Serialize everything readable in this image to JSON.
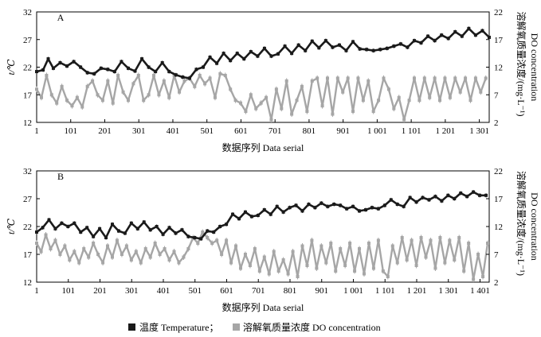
{
  "chart_data": [
    {
      "type": "line",
      "panel_label": "A",
      "xlabel": "数据序列 Data serial",
      "ylabel_left": "t/℃",
      "ylabel_right": "溶解氧质量浓度/(mg·L⁻¹)",
      "ylabel_right_en": "DO concentration",
      "xlim": [
        1,
        1330
      ],
      "ylim_left": [
        12,
        32
      ],
      "ylim_right": [
        2,
        22
      ],
      "x_ticks": [
        1,
        101,
        201,
        301,
        401,
        501,
        601,
        701,
        801,
        901,
        1001,
        1101,
        1201,
        1301
      ],
      "x_tick_labels": [
        "1",
        "101",
        "201",
        "301",
        "401",
        "501",
        "601",
        "701",
        "801",
        "901",
        "1 001",
        "1 101",
        "1 201",
        "1 301"
      ],
      "y_ticks_left": [
        12,
        17,
        22,
        27,
        32
      ],
      "y_ticks_right": [
        2,
        7,
        12,
        17,
        22
      ],
      "series": [
        {
          "name": "温度 Temperature",
          "axis": "left",
          "color": "#1a1a1a",
          "x": [
            1,
            20,
            35,
            50,
            70,
            90,
            110,
            130,
            150,
            170,
            190,
            210,
            230,
            250,
            270,
            290,
            310,
            330,
            350,
            370,
            390,
            410,
            430,
            450,
            470,
            490,
            510,
            530,
            550,
            570,
            590,
            610,
            630,
            650,
            670,
            690,
            710,
            730,
            750,
            770,
            790,
            810,
            830,
            850,
            870,
            890,
            910,
            930,
            950,
            970,
            990,
            1010,
            1030,
            1050,
            1070,
            1090,
            1110,
            1130,
            1150,
            1170,
            1190,
            1210,
            1230,
            1250,
            1270,
            1290,
            1310,
            1330
          ],
          "values": [
            21.2,
            21.5,
            23.5,
            21.8,
            22.8,
            22.2,
            23.0,
            22.0,
            21.0,
            20.8,
            21.8,
            21.6,
            21.2,
            23.0,
            21.8,
            21.3,
            23.5,
            22.0,
            21.2,
            22.8,
            21.2,
            20.6,
            20.2,
            20.0,
            21.6,
            22.0,
            23.8,
            22.7,
            24.5,
            23.2,
            24.5,
            23.5,
            24.8,
            24.0,
            25.4,
            24.0,
            24.4,
            25.8,
            24.5,
            26.0,
            25.0,
            26.7,
            25.5,
            26.8,
            25.6,
            26.0,
            25.0,
            26.6,
            25.3,
            25.2,
            25.0,
            25.2,
            25.4,
            25.8,
            26.2,
            25.6,
            26.8,
            26.4,
            27.6,
            26.8,
            27.8,
            27.2,
            28.4,
            27.6,
            29.0,
            27.8,
            28.6,
            27.4
          ]
        },
        {
          "name": "溶解氧质量浓度 DO concentration",
          "axis": "right",
          "color": "#a6a6a6",
          "x": [
            1,
            15,
            30,
            45,
            60,
            75,
            90,
            105,
            120,
            135,
            150,
            165,
            180,
            195,
            210,
            225,
            240,
            255,
            270,
            285,
            300,
            315,
            330,
            345,
            360,
            375,
            390,
            405,
            420,
            435,
            450,
            465,
            480,
            495,
            510,
            525,
            540,
            555,
            570,
            585,
            600,
            615,
            630,
            645,
            660,
            675,
            690,
            705,
            720,
            735,
            750,
            765,
            780,
            795,
            810,
            825,
            840,
            855,
            870,
            885,
            900,
            915,
            930,
            945,
            960,
            975,
            990,
            1005,
            1020,
            1035,
            1050,
            1065,
            1080,
            1095,
            1110,
            1125,
            1140,
            1155,
            1170,
            1185,
            1200,
            1215,
            1230,
            1245,
            1260,
            1275,
            1290,
            1305,
            1320
          ],
          "values": [
            8.0,
            6.5,
            10.5,
            7.0,
            5.5,
            8.5,
            6.0,
            5.0,
            6.5,
            4.8,
            8.5,
            9.5,
            7.0,
            6.0,
            9.5,
            5.5,
            10.5,
            7.5,
            6.0,
            9.0,
            10.5,
            6.0,
            7.0,
            10.5,
            7.0,
            9.5,
            6.5,
            10.5,
            7.5,
            9.5,
            10.0,
            8.5,
            10.5,
            9.0,
            10.0,
            6.5,
            10.8,
            10.5,
            8.0,
            6.0,
            5.5,
            4.0,
            7.0,
            4.5,
            5.5,
            6.5,
            2.5,
            8.0,
            4.5,
            9.5,
            3.5,
            6.0,
            8.5,
            4.0,
            9.5,
            10.0,
            5.0,
            10.0,
            3.5,
            10.0,
            7.5,
            10.0,
            4.0,
            10.0,
            6.0,
            9.5,
            4.0,
            6.0,
            10.0,
            8.0,
            4.5,
            6.5,
            2.5,
            6.0,
            10.0,
            6.0,
            10.0,
            6.5,
            10.0,
            6.0,
            10.0,
            6.5,
            10.0,
            7.5,
            10.0,
            6.0,
            10.0,
            7.5,
            10.0
          ]
        }
      ]
    },
    {
      "type": "line",
      "panel_label": "B",
      "xlabel": "数据序列 Data serial",
      "ylabel_left": "t/℃",
      "ylabel_right": "溶解氧质量浓度/(mg·L⁻¹)",
      "ylabel_right_en": "DO concentration",
      "xlim": [
        1,
        1430
      ],
      "ylim_left": [
        12,
        32
      ],
      "ylim_right": [
        2,
        22
      ],
      "x_ticks": [
        1,
        101,
        201,
        301,
        401,
        501,
        601,
        701,
        801,
        901,
        1001,
        1101,
        1201,
        1301,
        1401
      ],
      "x_tick_labels": [
        "1",
        "101",
        "201",
        "301",
        "401",
        "501",
        "601",
        "701",
        "801",
        "901",
        "1 001",
        "1 101",
        "1 201",
        "1 301",
        "1 401"
      ],
      "y_ticks_left": [
        12,
        17,
        22,
        27,
        32
      ],
      "y_ticks_right": [
        2,
        7,
        12,
        17,
        22
      ],
      "series": [
        {
          "name": "温度 Temperature",
          "axis": "left",
          "color": "#1a1a1a",
          "x": [
            1,
            20,
            40,
            60,
            80,
            100,
            120,
            140,
            160,
            180,
            200,
            220,
            240,
            260,
            280,
            300,
            320,
            340,
            360,
            380,
            400,
            420,
            440,
            460,
            480,
            500,
            520,
            540,
            560,
            580,
            600,
            620,
            640,
            660,
            680,
            700,
            720,
            740,
            760,
            780,
            800,
            820,
            840,
            860,
            880,
            900,
            920,
            940,
            960,
            980,
            1000,
            1020,
            1040,
            1060,
            1080,
            1100,
            1120,
            1140,
            1160,
            1180,
            1200,
            1220,
            1240,
            1260,
            1280,
            1300,
            1320,
            1340,
            1360,
            1380,
            1400,
            1420
          ],
          "values": [
            21.0,
            21.8,
            23.2,
            21.6,
            22.6,
            22.0,
            22.6,
            21.0,
            21.8,
            20.2,
            21.6,
            20.0,
            22.4,
            21.2,
            20.8,
            22.6,
            21.6,
            22.8,
            21.4,
            22.0,
            20.6,
            21.8,
            20.8,
            21.4,
            20.2,
            20.0,
            19.8,
            21.2,
            21.0,
            22.0,
            22.4,
            24.2,
            23.4,
            24.6,
            23.8,
            24.0,
            25.0,
            24.2,
            25.6,
            24.6,
            25.4,
            25.8,
            24.8,
            26.0,
            25.4,
            26.2,
            25.6,
            26.0,
            25.8,
            25.2,
            25.6,
            24.8,
            25.0,
            25.4,
            25.2,
            25.8,
            26.8,
            26.0,
            25.6,
            27.2,
            26.4,
            27.2,
            26.8,
            27.4,
            26.6,
            27.6,
            27.0,
            28.0,
            27.4,
            28.2,
            27.6,
            27.6
          ]
        },
        {
          "name": "溶解氧质量浓度 DO concentration",
          "axis": "right",
          "color": "#a6a6a6",
          "x": [
            1,
            15,
            30,
            45,
            60,
            75,
            90,
            105,
            120,
            135,
            150,
            165,
            180,
            195,
            210,
            225,
            240,
            255,
            270,
            285,
            300,
            315,
            330,
            345,
            360,
            375,
            390,
            405,
            420,
            435,
            450,
            465,
            480,
            495,
            510,
            525,
            540,
            555,
            570,
            585,
            600,
            615,
            630,
            645,
            660,
            675,
            690,
            705,
            720,
            735,
            750,
            765,
            780,
            795,
            810,
            825,
            840,
            855,
            870,
            885,
            900,
            915,
            930,
            945,
            960,
            975,
            990,
            1005,
            1020,
            1035,
            1050,
            1065,
            1080,
            1095,
            1110,
            1125,
            1140,
            1155,
            1170,
            1185,
            1200,
            1215,
            1230,
            1245,
            1260,
            1275,
            1290,
            1305,
            1320,
            1335,
            1350,
            1365,
            1380,
            1395,
            1410,
            1425
          ],
          "values": [
            9.0,
            7.5,
            10.5,
            8.0,
            9.5,
            7.0,
            8.5,
            6.0,
            7.5,
            5.5,
            8.0,
            6.5,
            9.0,
            7.0,
            5.5,
            8.5,
            6.5,
            9.5,
            7.0,
            8.5,
            6.0,
            7.5,
            5.5,
            8.0,
            6.5,
            9.0,
            7.0,
            8.0,
            6.0,
            7.5,
            5.5,
            6.5,
            8.0,
            10.0,
            9.0,
            11.0,
            10.0,
            9.0,
            9.5,
            7.0,
            9.5,
            5.5,
            8.5,
            4.5,
            7.0,
            5.0,
            8.0,
            4.0,
            6.5,
            3.5,
            7.5,
            4.0,
            6.0,
            3.5,
            7.5,
            3.0,
            8.5,
            5.0,
            9.5,
            4.5,
            8.5,
            5.5,
            9.0,
            4.0,
            8.0,
            5.0,
            9.0,
            4.0,
            8.0,
            3.5,
            9.0,
            4.5,
            9.5,
            4.0,
            3.0,
            8.5,
            5.5,
            10.0,
            6.0,
            9.5,
            5.0,
            10.0,
            6.5,
            9.5,
            4.5,
            10.0,
            5.5,
            9.5,
            6.0,
            10.0,
            4.0,
            9.0,
            2.5,
            7.0,
            3.0,
            9.0
          ]
        }
      ]
    }
  ],
  "legend": {
    "items": [
      {
        "label": "温度 Temperature；",
        "color": "#1a1a1a",
        "icon": "black-square-icon"
      },
      {
        "label": "溶解氧质量浓度 DO concentration",
        "color": "#a6a6a6",
        "icon": "gray-square-icon"
      }
    ]
  }
}
